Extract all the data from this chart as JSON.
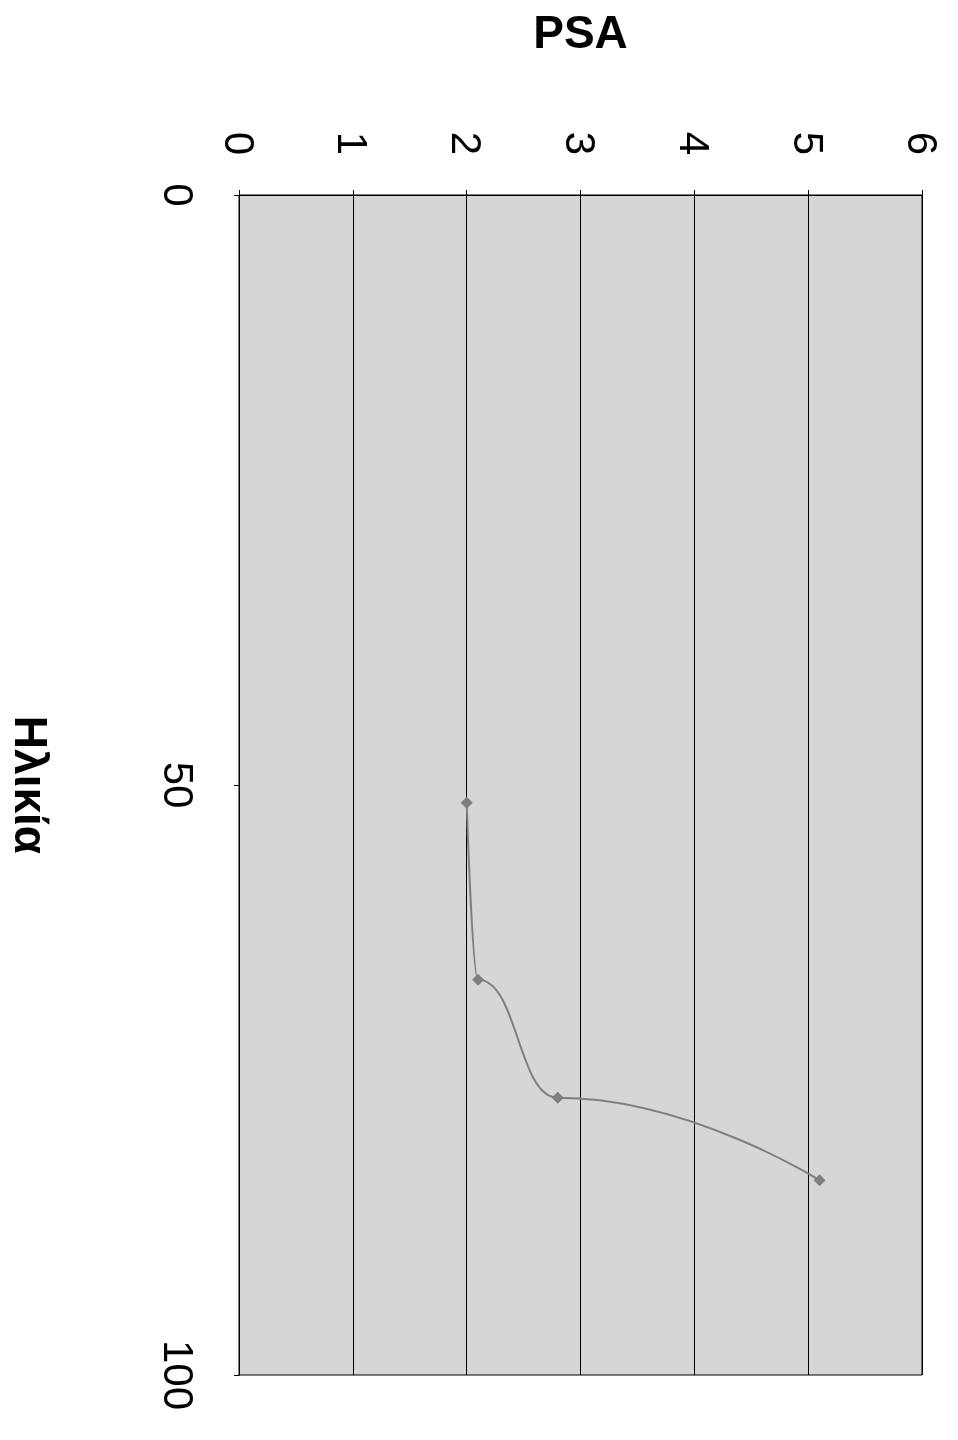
{
  "chart_data": {
    "type": "line",
    "xlabel": "PSA",
    "ylabel": "Ηλικία",
    "x": [
      2.0,
      2.1,
      2.8,
      5.1
    ],
    "series": [
      {
        "color": "#7f7f7f",
        "values": [
          51.5,
          66.5,
          76.5,
          83.5
        ]
      }
    ],
    "xlim": [
      0,
      6
    ],
    "xticks": [
      0,
      1,
      2,
      3,
      4,
      5,
      6
    ],
    "ylim": [
      100,
      0
    ],
    "yticks": [
      0,
      50,
      100
    ],
    "grid": "x",
    "marker": "diamond",
    "line_style": "solid"
  }
}
